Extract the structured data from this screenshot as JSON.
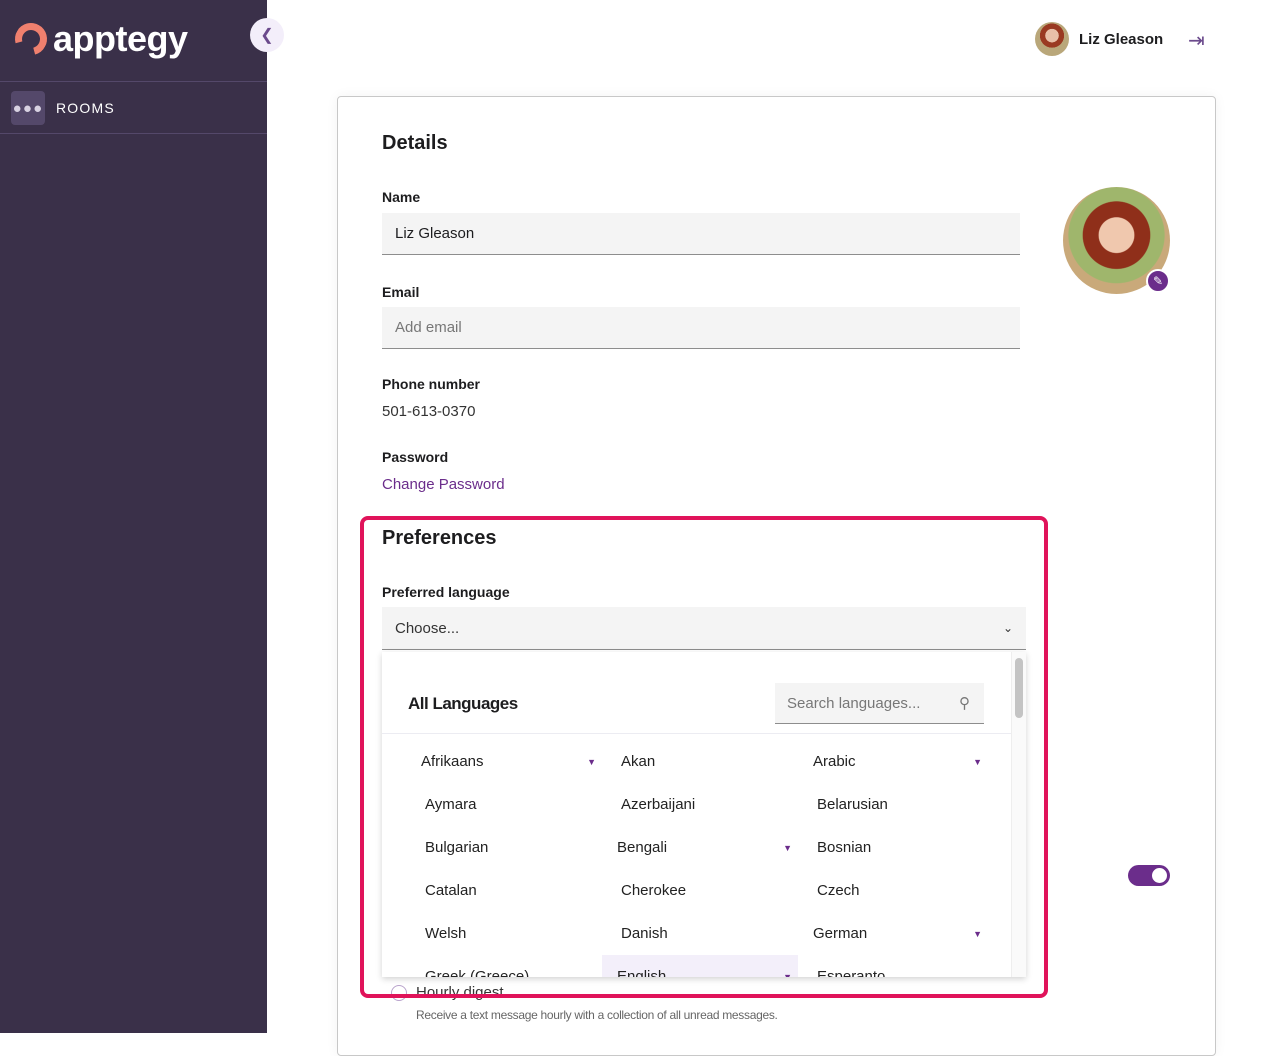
{
  "app": {
    "logo_text": "apptegy"
  },
  "sidebar": {
    "items": [
      {
        "label": "ROOMS",
        "icon": "group-icon"
      }
    ],
    "collapse_icon": "chevron-left-icon"
  },
  "header": {
    "user_name": "Liz Gleason",
    "logout_icon": "logout-icon"
  },
  "details": {
    "title": "Details",
    "name_label": "Name",
    "name_value": "Liz Gleason",
    "email_label": "Email",
    "email_placeholder": "Add email",
    "phone_label": "Phone number",
    "phone_value": "501-613-0370",
    "password_label": "Password",
    "change_password": "Change Password"
  },
  "preferences": {
    "title": "Preferences",
    "language_label": "Preferred language",
    "language_placeholder": "Choose...",
    "dropdown": {
      "title": "All Languages",
      "search_placeholder": "Search languages...",
      "languages": [
        {
          "name": "Afrikaans",
          "has_submenu": true
        },
        {
          "name": "Akan",
          "has_submenu": false
        },
        {
          "name": "Arabic",
          "has_submenu": true
        },
        {
          "name": "Aymara",
          "has_submenu": false
        },
        {
          "name": "Azerbaijani",
          "has_submenu": false
        },
        {
          "name": "Belarusian",
          "has_submenu": false
        },
        {
          "name": "Bulgarian",
          "has_submenu": false
        },
        {
          "name": "Bengali",
          "has_submenu": true
        },
        {
          "name": "Bosnian",
          "has_submenu": false
        },
        {
          "name": "Catalan",
          "has_submenu": false
        },
        {
          "name": "Cherokee",
          "has_submenu": false
        },
        {
          "name": "Czech",
          "has_submenu": false
        },
        {
          "name": "Welsh",
          "has_submenu": false
        },
        {
          "name": "Danish",
          "has_submenu": false
        },
        {
          "name": "German",
          "has_submenu": true
        },
        {
          "name": "Greek (Greece)",
          "has_submenu": false
        },
        {
          "name": "English",
          "has_submenu": true,
          "highlighted": true
        },
        {
          "name": "Esperanto",
          "has_submenu": false
        }
      ]
    },
    "toggle_on": true,
    "hourly_digest_label": "Hourly digest",
    "hourly_digest_desc": "Receive a text message hourly with a collection of all unread messages.",
    "hourly_digest_selected": false
  },
  "colors": {
    "sidebar": "#3a3049",
    "accent": "#6b2d8b",
    "highlight_border": "#e0135a",
    "logo": "#f0806e"
  }
}
